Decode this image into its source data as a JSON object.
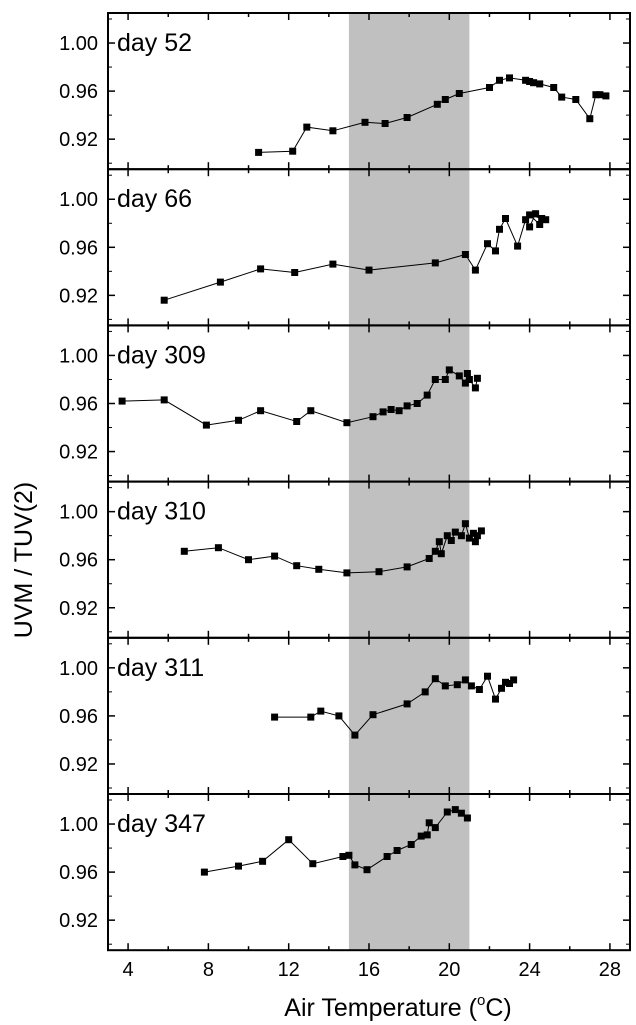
{
  "chart_data": {
    "type": "scatter",
    "xlabel": "Air Temperature (°C)",
    "xlabel_main": "Air Temperature (",
    "xlabel_degree": "o",
    "xlabel_unit": "C)",
    "ylabel": "UVM / TUV(2)",
    "xlim": [
      3,
      29
    ],
    "xticks": [
      4,
      8,
      12,
      16,
      20,
      24,
      28
    ],
    "ylim": [
      0.895,
      1.025
    ],
    "yticks": [
      0.92,
      0.96,
      1.0
    ],
    "shaded_x_range": [
      15,
      21
    ],
    "shade_color": "#c0c0c0",
    "marker_color": "#000000",
    "panels": [
      {
        "label": "day 52",
        "points": [
          [
            10.5,
            0.909
          ],
          [
            12.2,
            0.91
          ],
          [
            12.9,
            0.93
          ],
          [
            14.2,
            0.927
          ],
          [
            15.8,
            0.934
          ],
          [
            16.8,
            0.933
          ],
          [
            17.9,
            0.938
          ],
          [
            19.4,
            0.949
          ],
          [
            19.8,
            0.953
          ],
          [
            20.5,
            0.958
          ],
          [
            22.0,
            0.963
          ],
          [
            22.5,
            0.969
          ],
          [
            23.0,
            0.971
          ],
          [
            23.8,
            0.969
          ],
          [
            24.0,
            0.968
          ],
          [
            24.2,
            0.967
          ],
          [
            24.5,
            0.966
          ],
          [
            25.2,
            0.963
          ],
          [
            25.6,
            0.955
          ],
          [
            26.3,
            0.953
          ],
          [
            27.0,
            0.937
          ],
          [
            27.3,
            0.957
          ],
          [
            27.5,
            0.957
          ],
          [
            27.8,
            0.956
          ]
        ]
      },
      {
        "label": "day 66",
        "points": [
          [
            5.8,
            0.916
          ],
          [
            8.6,
            0.931
          ],
          [
            10.6,
            0.942
          ],
          [
            12.3,
            0.939
          ],
          [
            14.2,
            0.946
          ],
          [
            16.0,
            0.941
          ],
          [
            19.3,
            0.947
          ],
          [
            20.8,
            0.954
          ],
          [
            21.3,
            0.941
          ],
          [
            21.9,
            0.963
          ],
          [
            22.3,
            0.957
          ],
          [
            22.5,
            0.975
          ],
          [
            22.8,
            0.984
          ],
          [
            23.4,
            0.961
          ],
          [
            23.8,
            0.983
          ],
          [
            24.0,
            0.977
          ],
          [
            24.3,
            0.988
          ],
          [
            24.6,
            0.984
          ],
          [
            24.0,
            0.987
          ],
          [
            24.5,
            0.979
          ],
          [
            24.8,
            0.983
          ]
        ]
      },
      {
        "label": "day 309",
        "points": [
          [
            3.7,
            0.962
          ],
          [
            5.8,
            0.963
          ],
          [
            7.9,
            0.942
          ],
          [
            9.5,
            0.946
          ],
          [
            10.6,
            0.954
          ],
          [
            12.4,
            0.945
          ],
          [
            13.1,
            0.954
          ],
          [
            14.9,
            0.944
          ],
          [
            16.2,
            0.949
          ],
          [
            16.7,
            0.953
          ],
          [
            17.1,
            0.955
          ],
          [
            17.5,
            0.954
          ],
          [
            17.9,
            0.958
          ],
          [
            18.4,
            0.96
          ],
          [
            18.9,
            0.967
          ],
          [
            19.3,
            0.98
          ],
          [
            19.8,
            0.98
          ],
          [
            20.0,
            0.988
          ],
          [
            20.5,
            0.983
          ],
          [
            20.8,
            0.977
          ],
          [
            20.9,
            0.985
          ],
          [
            21.0,
            0.98
          ],
          [
            21.3,
            0.973
          ],
          [
            21.4,
            0.981
          ]
        ]
      },
      {
        "label": "day 310",
        "points": [
          [
            6.8,
            0.967
          ],
          [
            8.5,
            0.97
          ],
          [
            10.0,
            0.96
          ],
          [
            11.3,
            0.963
          ],
          [
            12.4,
            0.955
          ],
          [
            13.5,
            0.952
          ],
          [
            14.9,
            0.949
          ],
          [
            16.5,
            0.95
          ],
          [
            17.9,
            0.954
          ],
          [
            19.0,
            0.961
          ],
          [
            19.3,
            0.967
          ],
          [
            19.5,
            0.975
          ],
          [
            19.6,
            0.965
          ],
          [
            19.9,
            0.98
          ],
          [
            20.1,
            0.976
          ],
          [
            20.3,
            0.983
          ],
          [
            20.6,
            0.98
          ],
          [
            20.8,
            0.99
          ],
          [
            21.0,
            0.978
          ],
          [
            21.2,
            0.982
          ],
          [
            21.3,
            0.975
          ],
          [
            21.4,
            0.98
          ],
          [
            21.6,
            0.984
          ]
        ]
      },
      {
        "label": "day 311",
        "points": [
          [
            11.3,
            0.959
          ],
          [
            13.1,
            0.959
          ],
          [
            13.6,
            0.964
          ],
          [
            14.5,
            0.96
          ],
          [
            15.3,
            0.944
          ],
          [
            16.2,
            0.961
          ],
          [
            17.9,
            0.97
          ],
          [
            18.8,
            0.98
          ],
          [
            19.3,
            0.991
          ],
          [
            19.8,
            0.985
          ],
          [
            20.4,
            0.986
          ],
          [
            20.8,
            0.99
          ],
          [
            21.1,
            0.985
          ],
          [
            21.5,
            0.982
          ],
          [
            21.9,
            0.993
          ],
          [
            22.3,
            0.974
          ],
          [
            22.6,
            0.983
          ],
          [
            22.8,
            0.988
          ],
          [
            23.0,
            0.987
          ],
          [
            23.2,
            0.99
          ]
        ]
      },
      {
        "label": "day 347",
        "points": [
          [
            7.8,
            0.96
          ],
          [
            9.5,
            0.965
          ],
          [
            10.7,
            0.969
          ],
          [
            12.0,
            0.987
          ],
          [
            13.2,
            0.967
          ],
          [
            14.7,
            0.973
          ],
          [
            15.0,
            0.974
          ],
          [
            15.3,
            0.966
          ],
          [
            15.9,
            0.962
          ],
          [
            16.9,
            0.973
          ],
          [
            17.4,
            0.978
          ],
          [
            18.1,
            0.983
          ],
          [
            18.6,
            0.99
          ],
          [
            18.9,
            0.991
          ],
          [
            19.0,
            1.001
          ],
          [
            19.3,
            0.997
          ],
          [
            19.9,
            1.01
          ],
          [
            20.3,
            1.012
          ],
          [
            20.6,
            1.009
          ],
          [
            20.9,
            1.005
          ]
        ]
      }
    ]
  }
}
